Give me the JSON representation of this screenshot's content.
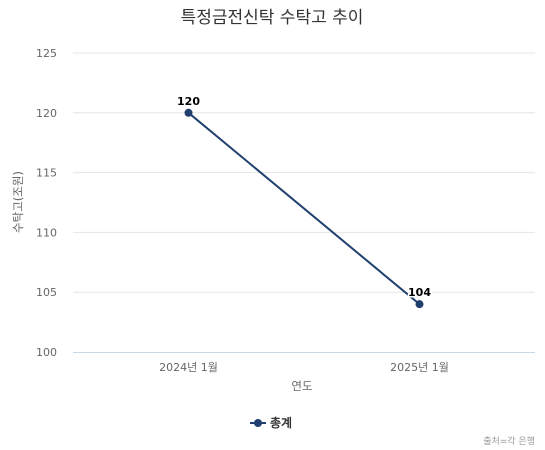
{
  "chart_data": {
    "type": "line",
    "title": "특정금전신탁 수탁고 추이",
    "xlabel": "연도",
    "ylabel": "수탁고(조원)",
    "categories": [
      "2024년 1월",
      "2025년 1월"
    ],
    "series": [
      {
        "name": "총계",
        "values": [
          120,
          104
        ],
        "color": "#1f3f6e"
      }
    ],
    "ylim": [
      100,
      125
    ],
    "yticks": [
      100,
      105,
      110,
      115,
      120,
      125
    ],
    "grid": true,
    "legend": "bottom-center",
    "data_labels": true
  },
  "credits": "출처=각 은행"
}
